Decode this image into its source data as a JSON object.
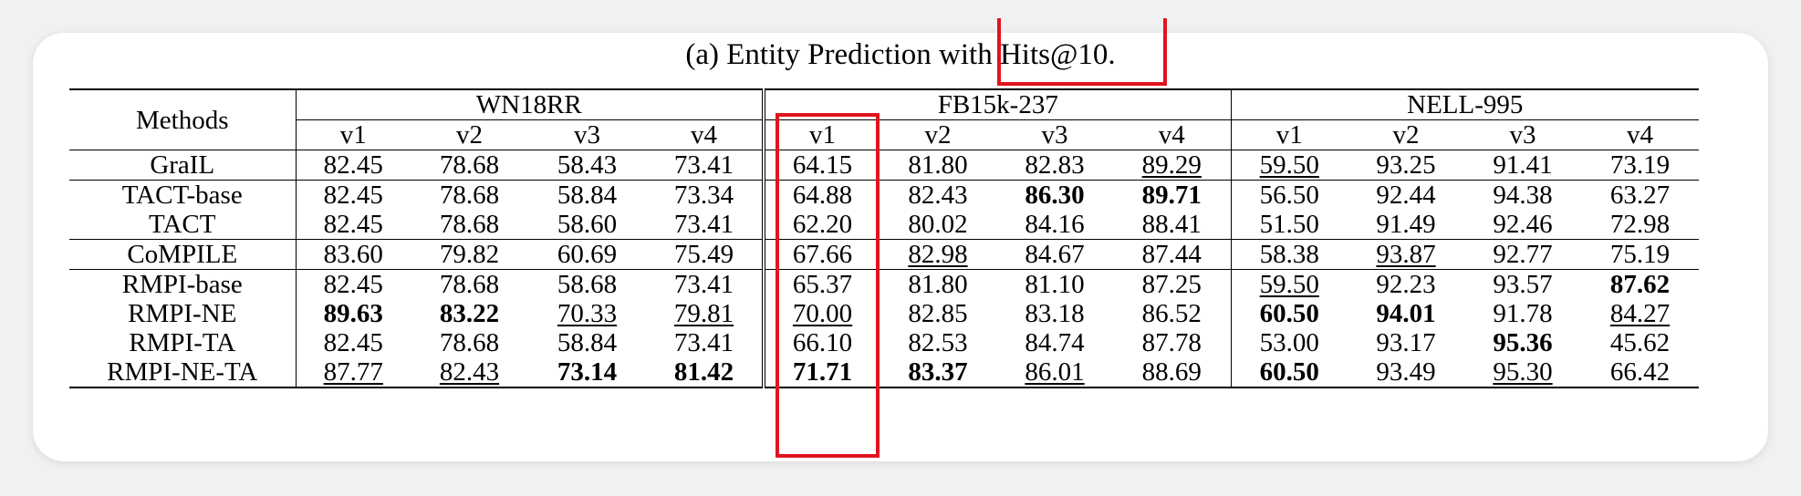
{
  "caption": "(a) Entity Prediction with Hits@10.",
  "headers": {
    "methods": "Methods",
    "groups": [
      "WN18RR",
      "FB15k-237",
      "NELL-995"
    ],
    "versions": [
      "v1",
      "v2",
      "v3",
      "v4",
      "v1",
      "v2",
      "v3",
      "v4",
      "v1",
      "v2",
      "v3",
      "v4"
    ]
  },
  "highlight_color": "#e0141e",
  "rows": [
    {
      "method": "GraIL",
      "values": [
        "82.45",
        "78.68",
        "58.43",
        "73.41",
        "64.15",
        "81.80",
        "82.83",
        "89.29",
        "59.50",
        "93.25",
        "91.41",
        "73.19"
      ],
      "bold": [],
      "underline": [
        7,
        8
      ]
    },
    {
      "method": "TACT-base",
      "values": [
        "82.45",
        "78.68",
        "58.84",
        "73.34",
        "64.88",
        "82.43",
        "86.30",
        "89.71",
        "56.50",
        "92.44",
        "94.38",
        "63.27"
      ],
      "bold": [
        6,
        7
      ],
      "underline": []
    },
    {
      "method": "TACT",
      "values": [
        "82.45",
        "78.68",
        "58.60",
        "73.41",
        "62.20",
        "80.02",
        "84.16",
        "88.41",
        "51.50",
        "91.49",
        "92.46",
        "72.98"
      ],
      "bold": [],
      "underline": []
    },
    {
      "method": "CoMPILE",
      "values": [
        "83.60",
        "79.82",
        "60.69",
        "75.49",
        "67.66",
        "82.98",
        "84.67",
        "87.44",
        "58.38",
        "93.87",
        "92.77",
        "75.19"
      ],
      "bold": [],
      "underline": [
        5,
        9
      ]
    },
    {
      "method": "RMPI-base",
      "values": [
        "82.45",
        "78.68",
        "58.68",
        "73.41",
        "65.37",
        "81.80",
        "81.10",
        "87.25",
        "59.50",
        "92.23",
        "93.57",
        "87.62"
      ],
      "bold": [
        11
      ],
      "underline": [
        8
      ]
    },
    {
      "method": "RMPI-NE",
      "values": [
        "89.63",
        "83.22",
        "70.33",
        "79.81",
        "70.00",
        "82.85",
        "83.18",
        "86.52",
        "60.50",
        "94.01",
        "91.78",
        "84.27"
      ],
      "bold": [
        0,
        1,
        8,
        9
      ],
      "underline": [
        2,
        3,
        4,
        11
      ]
    },
    {
      "method": "RMPI-TA",
      "values": [
        "82.45",
        "78.68",
        "58.84",
        "73.41",
        "66.10",
        "82.53",
        "84.74",
        "87.78",
        "53.00",
        "93.17",
        "95.36",
        "45.62"
      ],
      "bold": [
        10
      ],
      "underline": []
    },
    {
      "method": "RMPI-NE-TA",
      "values": [
        "87.77",
        "82.43",
        "73.14",
        "81.42",
        "71.71",
        "83.37",
        "86.01",
        "88.69",
        "60.50",
        "93.49",
        "95.30",
        "66.42"
      ],
      "bold": [
        2,
        3,
        4,
        5,
        8
      ],
      "underline": [
        0,
        1,
        6,
        10
      ]
    }
  ]
}
